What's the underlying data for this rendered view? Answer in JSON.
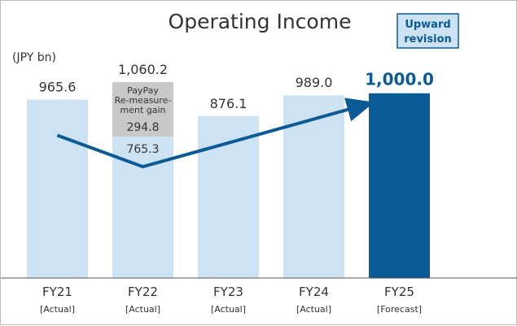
{
  "chart_data": {
    "type": "bar",
    "title": "Operating Income",
    "unit_label": "(JPY bn)",
    "categories": [
      "FY21",
      "FY22",
      "FY23",
      "FY24",
      "FY25"
    ],
    "category_notes": [
      "[Actual]",
      "[Actual]",
      "[Actual]",
      "[Actual]",
      "[Forecast]"
    ],
    "values": [
      965.6,
      1060.2,
      876.1,
      989.0,
      1000.0
    ],
    "value_labels": [
      "965.6",
      "1,060.2",
      "876.1",
      "989.0",
      "1,000.0"
    ],
    "fy22_breakdown": {
      "base_value": 765.3,
      "base_label": "765.3",
      "gain_value": 294.8,
      "gain_label": "294.8",
      "gain_name_lines": [
        "PayPay",
        "Re-measure-",
        "ment gain"
      ]
    },
    "badge_lines": [
      "Upward",
      "revision"
    ],
    "trend_arrow": {
      "from": "FY21",
      "via": "FY22",
      "to": "FY25"
    },
    "ylim": [
      0,
      1100
    ],
    "grid": false,
    "colors": {
      "bar": "#cde3f4",
      "bar_highlight": "#0a5a96",
      "gain_segment": "#c8c8c8",
      "arrow": "#0a5a96",
      "badge_fill": "#cde3f4",
      "badge_border": "#0a5a96",
      "text": "#333333",
      "axis": "#555555"
    }
  }
}
